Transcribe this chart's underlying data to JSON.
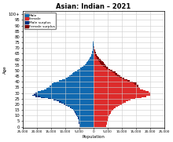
{
  "title": "Asian: Indian – 2021",
  "xlabel": "Population",
  "ylabel": "Age",
  "male_color": "#1169B0",
  "female_color": "#DD2B2B",
  "male_surplus_color": "#003080",
  "female_surplus_color": "#800000",
  "xlim": 25000,
  "age_labels": [
    "0",
    "5",
    "10",
    "15",
    "20",
    "25",
    "30",
    "35",
    "40",
    "45",
    "50",
    "55",
    "60",
    "65",
    "70",
    "75",
    "80",
    "85",
    "90",
    "95",
    "100+"
  ],
  "age_ticks": [
    0,
    5,
    10,
    15,
    20,
    25,
    30,
    35,
    40,
    45,
    50,
    55,
    60,
    65,
    70,
    75,
    80,
    85,
    90,
    95,
    100
  ],
  "male": [
    4800,
    4900,
    5000,
    5100,
    5100,
    5200,
    5300,
    5400,
    5500,
    5600,
    6000,
    6200,
    6400,
    6600,
    6900,
    7200,
    7600,
    8200,
    9000,
    9800,
    10500,
    11200,
    12000,
    13000,
    14200,
    16000,
    18500,
    20500,
    21500,
    21000,
    20500,
    19500,
    18500,
    17500,
    16500,
    16000,
    15500,
    15000,
    14500,
    14000,
    13000,
    12000,
    11000,
    10000,
    9200,
    8500,
    8000,
    7500,
    7000,
    6500,
    5800,
    5100,
    4500,
    4000,
    3500,
    3000,
    2700,
    2400,
    2100,
    1800,
    1500,
    1200,
    1000,
    820,
    650,
    520,
    420,
    320,
    250,
    200,
    160,
    130,
    100,
    80,
    60,
    45,
    35,
    25,
    18,
    13,
    9,
    6,
    4,
    3,
    2,
    1,
    1,
    0,
    0,
    0,
    0,
    0,
    0,
    0,
    0,
    0,
    0,
    0,
    0,
    0,
    0
  ],
  "female": [
    4500,
    4600,
    4700,
    4800,
    4900,
    5000,
    5100,
    5200,
    5300,
    5400,
    5700,
    5900,
    6100,
    6300,
    6600,
    7000,
    7400,
    7900,
    8700,
    9400,
    10000,
    10700,
    11400,
    12200,
    13200,
    14800,
    17000,
    18800,
    20000,
    20000,
    20000,
    19500,
    18500,
    17500,
    16500,
    16200,
    16000,
    15800,
    15500,
    15500,
    14000,
    13000,
    12000,
    11000,
    10200,
    9500,
    9000,
    8500,
    8000,
    7800,
    6800,
    6000,
    5500,
    5000,
    4600,
    4200,
    3900,
    3600,
    3300,
    2900,
    2500,
    2100,
    1800,
    1500,
    1200,
    980,
    800,
    650,
    520,
    420,
    340,
    280,
    220,
    175,
    135,
    105,
    80,
    60,
    45,
    33,
    24,
    17,
    12,
    8,
    6,
    4,
    3,
    2,
    1,
    1,
    1,
    0,
    0,
    0,
    0,
    0,
    0,
    0,
    0,
    0,
    0
  ],
  "xticks": [
    -25000,
    -20000,
    -15000,
    -10000,
    -5000,
    0,
    5000,
    10000,
    15000,
    20000,
    25000
  ],
  "xtick_labels": [
    "25,000",
    "20,000",
    "15,000",
    "10,000",
    "5,000",
    "0",
    "5,000",
    "10,000",
    "15,000",
    "20,000",
    "25,000"
  ],
  "background_color": "#FFFFFF",
  "grid_color": "#CCCCCC",
  "legend_labels": [
    "Male",
    "Female",
    "Male surplus",
    "Female surplus"
  ],
  "legend_colors": [
    "#1169B0",
    "#DD2B2B",
    "#003080",
    "#800000"
  ]
}
